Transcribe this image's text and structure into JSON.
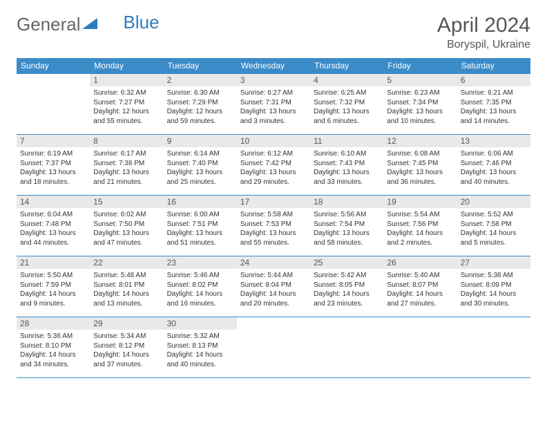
{
  "logo": {
    "text1": "General",
    "text2": "Blue"
  },
  "title": "April 2024",
  "location": "Boryspil, Ukraine",
  "colors": {
    "header_bg": "#3b8bc9",
    "header_text": "#ffffff",
    "daynum_bg": "#e9e9e9",
    "daynum_text": "#555555",
    "body_text": "#333333",
    "border": "#3b8bc9",
    "logo_gray": "#666666",
    "logo_blue": "#2d7dc1",
    "page_bg": "#ffffff"
  },
  "typography": {
    "title_fontsize": 30,
    "location_fontsize": 16,
    "header_fontsize": 12,
    "daynum_fontsize": 12,
    "body_fontsize": 10
  },
  "dayNames": [
    "Sunday",
    "Monday",
    "Tuesday",
    "Wednesday",
    "Thursday",
    "Friday",
    "Saturday"
  ],
  "weeks": [
    [
      null,
      {
        "n": "1",
        "sr": "6:32 AM",
        "ss": "7:27 PM",
        "dl": "12 hours and 55 minutes."
      },
      {
        "n": "2",
        "sr": "6:30 AM",
        "ss": "7:29 PM",
        "dl": "12 hours and 59 minutes."
      },
      {
        "n": "3",
        "sr": "6:27 AM",
        "ss": "7:31 PM",
        "dl": "13 hours and 3 minutes."
      },
      {
        "n": "4",
        "sr": "6:25 AM",
        "ss": "7:32 PM",
        "dl": "13 hours and 6 minutes."
      },
      {
        "n": "5",
        "sr": "6:23 AM",
        "ss": "7:34 PM",
        "dl": "13 hours and 10 minutes."
      },
      {
        "n": "6",
        "sr": "6:21 AM",
        "ss": "7:35 PM",
        "dl": "13 hours and 14 minutes."
      }
    ],
    [
      {
        "n": "7",
        "sr": "6:19 AM",
        "ss": "7:37 PM",
        "dl": "13 hours and 18 minutes."
      },
      {
        "n": "8",
        "sr": "6:17 AM",
        "ss": "7:38 PM",
        "dl": "13 hours and 21 minutes."
      },
      {
        "n": "9",
        "sr": "6:14 AM",
        "ss": "7:40 PM",
        "dl": "13 hours and 25 minutes."
      },
      {
        "n": "10",
        "sr": "6:12 AM",
        "ss": "7:42 PM",
        "dl": "13 hours and 29 minutes."
      },
      {
        "n": "11",
        "sr": "6:10 AM",
        "ss": "7:43 PM",
        "dl": "13 hours and 33 minutes."
      },
      {
        "n": "12",
        "sr": "6:08 AM",
        "ss": "7:45 PM",
        "dl": "13 hours and 36 minutes."
      },
      {
        "n": "13",
        "sr": "6:06 AM",
        "ss": "7:46 PM",
        "dl": "13 hours and 40 minutes."
      }
    ],
    [
      {
        "n": "14",
        "sr": "6:04 AM",
        "ss": "7:48 PM",
        "dl": "13 hours and 44 minutes."
      },
      {
        "n": "15",
        "sr": "6:02 AM",
        "ss": "7:50 PM",
        "dl": "13 hours and 47 minutes."
      },
      {
        "n": "16",
        "sr": "6:00 AM",
        "ss": "7:51 PM",
        "dl": "13 hours and 51 minutes."
      },
      {
        "n": "17",
        "sr": "5:58 AM",
        "ss": "7:53 PM",
        "dl": "13 hours and 55 minutes."
      },
      {
        "n": "18",
        "sr": "5:56 AM",
        "ss": "7:54 PM",
        "dl": "13 hours and 58 minutes."
      },
      {
        "n": "19",
        "sr": "5:54 AM",
        "ss": "7:56 PM",
        "dl": "14 hours and 2 minutes."
      },
      {
        "n": "20",
        "sr": "5:52 AM",
        "ss": "7:58 PM",
        "dl": "14 hours and 5 minutes."
      }
    ],
    [
      {
        "n": "21",
        "sr": "5:50 AM",
        "ss": "7:59 PM",
        "dl": "14 hours and 9 minutes."
      },
      {
        "n": "22",
        "sr": "5:48 AM",
        "ss": "8:01 PM",
        "dl": "14 hours and 13 minutes."
      },
      {
        "n": "23",
        "sr": "5:46 AM",
        "ss": "8:02 PM",
        "dl": "14 hours and 16 minutes."
      },
      {
        "n": "24",
        "sr": "5:44 AM",
        "ss": "8:04 PM",
        "dl": "14 hours and 20 minutes."
      },
      {
        "n": "25",
        "sr": "5:42 AM",
        "ss": "8:05 PM",
        "dl": "14 hours and 23 minutes."
      },
      {
        "n": "26",
        "sr": "5:40 AM",
        "ss": "8:07 PM",
        "dl": "14 hours and 27 minutes."
      },
      {
        "n": "27",
        "sr": "5:38 AM",
        "ss": "8:09 PM",
        "dl": "14 hours and 30 minutes."
      }
    ],
    [
      {
        "n": "28",
        "sr": "5:36 AM",
        "ss": "8:10 PM",
        "dl": "14 hours and 34 minutes."
      },
      {
        "n": "29",
        "sr": "5:34 AM",
        "ss": "8:12 PM",
        "dl": "14 hours and 37 minutes."
      },
      {
        "n": "30",
        "sr": "5:32 AM",
        "ss": "8:13 PM",
        "dl": "14 hours and 40 minutes."
      },
      null,
      null,
      null,
      null
    ]
  ],
  "labels": {
    "sunrise": "Sunrise:",
    "sunset": "Sunset:",
    "daylight": "Daylight:"
  }
}
